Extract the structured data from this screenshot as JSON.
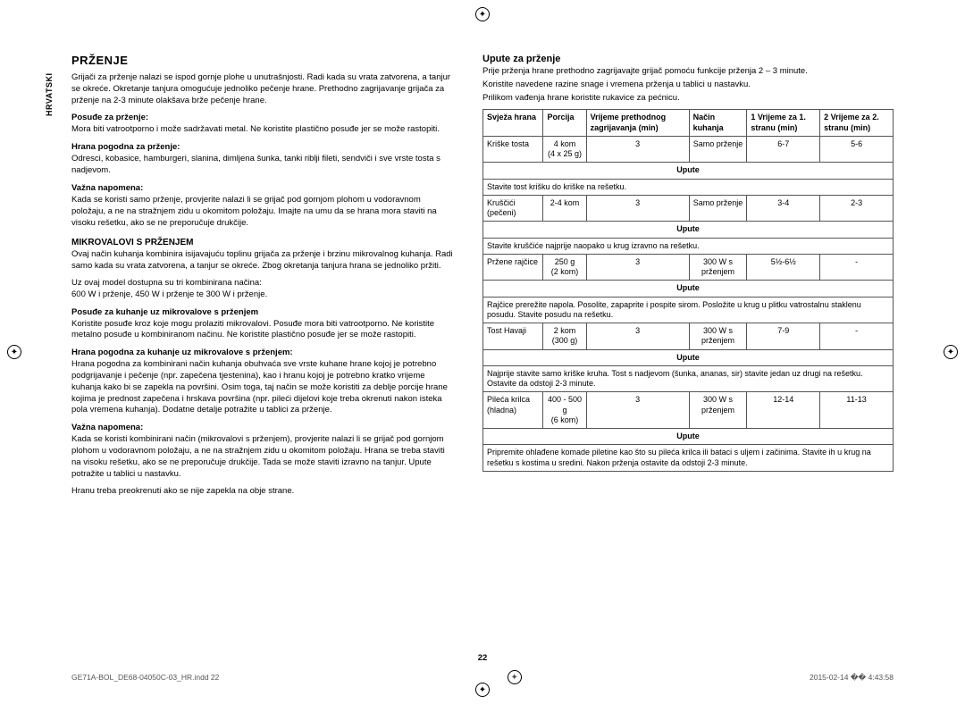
{
  "sideLabel": "HRVATSKI",
  "left": {
    "h2": "PRŽENJE",
    "intro": "Grijači za prženje nalazi se ispod gornje plohe u unutrašnjosti. Radi kada su vrata zatvorena, a tanjur se okreće. Okretanje tanjura omogućuje jednoliko pečenje hrane. Prethodno zagrijavanje grijača za prženje na 2-3 minute olakšava brže pečenje hrane.",
    "sec1h": "Posuđe za prženje:",
    "sec1p": "Mora biti vatrootporno i može sadržavati metal. Ne koristite plastično posuđe jer se može rastopiti.",
    "sec2h": "Hrana pogodna za prženje:",
    "sec2p": "Odresci, kobasice, hamburgeri, slanina, dimljena šunka, tanki riblji fileti, sendviči i sve vrste tosta s nadjevom.",
    "sec3h": "Važna napomena:",
    "sec3p": "Kada se koristi samo prženje, provjerite nalazi li se grijač pod gornjom plohom u vodoravnom položaju, a ne na stražnjem zidu u okomitom položaju. Imajte na umu da se hrana mora staviti na visoku rešetku, ako se ne preporučuje drukčije.",
    "h3": "MIKROVALOVI S PRŽENJEM",
    "mp1": "Ovaj način kuhanja kombinira isijavajuću toplinu grijača za prženje i brzinu mikrovalnog kuhanja. Radi samo kada su vrata zatvorena, a tanjur se okreće. Zbog okretanja tanjura hrana se jednoliko pržiti.",
    "mp2": "Uz ovaj model dostupna su tri kombinirana načina:",
    "mp3": "600 W i prženje, 450 W i prženje te 300 W i prženje.",
    "sec4h": "Posuđe za kuhanje uz mikrovalove s prženjem",
    "sec4p": "Koristite posuđe kroz koje mogu prolaziti mikrovalovi. Posuđe mora biti vatrootporno. Ne koristite metalno posuđe u kombiniranom načinu. Ne koristite plastično posuđe jer se može rastopiti.",
    "sec5h": "Hrana pogodna za kuhanje uz mikrovalove s prženjem:",
    "sec5p": "Hrana pogodna za kombinirani način kuhanja obuhvaća sve vrste kuhane hrane kojoj je potrebno podgrijavanje i pečenje (npr. zapečena tjestenina), kao i hranu kojoj je potrebno kratko vrijeme kuhanja kako bi se zapekla na površini. Osim toga, taj način se može koristiti za deblje porcije hrane kojima je prednost zapečena i hrskava površina (npr. pileći dijelovi koje treba okrenuti nakon isteka pola vremena kuhanja). Dodatne detalje potražite u tablici za prženje.",
    "sec6h": "Važna napomena:",
    "sec6p": "Kada se koristi kombinirani način (mikrovalovi s prženjem), provjerite nalazi li se grijač pod gornjom plohom u vodoravnom položaju, a ne na stražnjem zidu u okomitom položaju. Hrana se treba staviti na visoku rešetku, ako se ne preporučuje drukčije. Tada se može staviti izravno na tanjur. Upute potražite u tablici u nastavku.",
    "sec6p2": "Hranu treba preokrenuti ako se nije zapekla na obje strane."
  },
  "right": {
    "h3": "Upute za prženje",
    "intro1": "Prije prženja hrane prethodno zagrijavajte grijač pomoću funkcije prženja 2 – 3 minute.",
    "intro2": "Koristite navedene razine snage i vremena prženja u tablici u nastavku.",
    "intro3": "Prilikom vađenja hrane koristite rukavice za pećnicu.",
    "headers": [
      "Svježa hrana",
      "Porcija",
      "Vrijeme prethodnog zagrijavanja (min)",
      "Način kuhanja",
      "1 Vrijeme za 1. stranu (min)",
      "2 Vrijeme za 2. stranu (min)"
    ],
    "uputeLabel": "Upute",
    "rows": [
      {
        "c": [
          "Kriške tosta",
          "4 kom\n(4 x 25 g)",
          "3",
          "Samo prženje",
          "6-7",
          "5-6"
        ],
        "note": "Stavite tost krišku do kriške na rešetku."
      },
      {
        "c": [
          "Kruščići (pečeni)",
          "2-4 kom",
          "3",
          "Samo prženje",
          "3-4",
          "2-3"
        ],
        "note": "Stavite kruščiće najprije naopako u krug izravno na rešetku."
      },
      {
        "c": [
          "Pržene rajčice",
          "250 g\n(2 kom)",
          "3",
          "300 W s prženjem",
          "5½-6½",
          "-"
        ],
        "note": "Rajčice prerežite napola. Posolite, zapaprite i pospite sirom. Posložite u krug u plitku vatrostalnu staklenu posudu. Stavite posudu na rešetku."
      },
      {
        "c": [
          "Tost Havaji",
          "2 kom\n(300 g)",
          "3",
          "300 W s prženjem",
          "7-9",
          "-"
        ],
        "note": "Najprije stavite samo kriške kruha. Tost s nadjevom (šunka, ananas, sir) stavite jedan uz drugi na rešetku. Ostavite da odstoji 2-3 minute."
      },
      {
        "c": [
          "Pileća krilca (hladna)",
          "400 - 500 g\n(6 kom)",
          "3",
          "300 W s prženjem",
          "12-14",
          "11-13"
        ],
        "note": "Pripremite ohlađene komade piletine kao što su pileća krilca ili bataci s uljem i začinima. Stavite ih u krug na rešetku s kostima u sredini. Nakon prženja ostavite da odstoji 2-3 minute."
      }
    ]
  },
  "pageNum": "22",
  "footerLeft": "GE71A-BOL_DE68-04050C-03_HR.indd   22",
  "footerRight": "2015-02-14   �� 4:43:58"
}
